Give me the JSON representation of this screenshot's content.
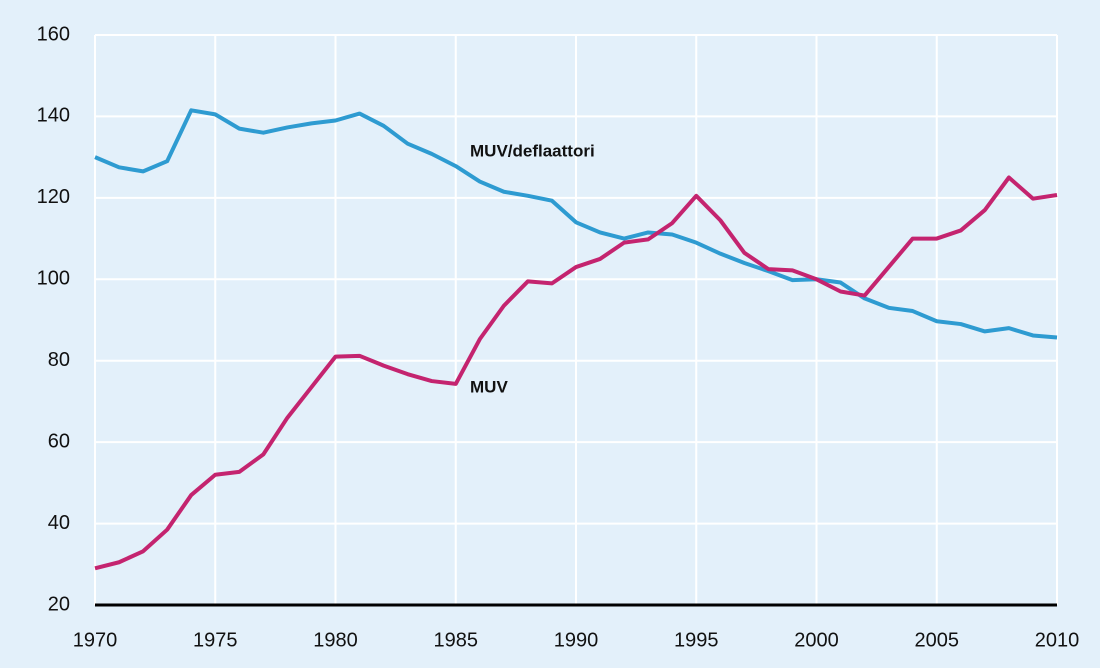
{
  "chart_data": {
    "type": "line",
    "x": [
      1970,
      1971,
      1972,
      1973,
      1974,
      1975,
      1976,
      1977,
      1978,
      1979,
      1980,
      1981,
      1982,
      1983,
      1984,
      1985,
      1986,
      1987,
      1988,
      1989,
      1990,
      1991,
      1992,
      1993,
      1994,
      1995,
      1996,
      1997,
      1998,
      1999,
      2000,
      2001,
      2002,
      2003,
      2004,
      2005,
      2006,
      2007,
      2008,
      2009,
      2010
    ],
    "series": [
      {
        "name": "MUV/deflaattori",
        "color": "#2e9bd1",
        "values": [
          130,
          127.5,
          126.5,
          129,
          141.5,
          140.5,
          137,
          136,
          137.3,
          138.3,
          139,
          140.7,
          137.7,
          133.3,
          130.8,
          127.8,
          124,
          121.5,
          120.5,
          119.3,
          114,
          111.5,
          110,
          111.5,
          111,
          109,
          106.3,
          104,
          102,
          99.8,
          100,
          99.2,
          95.3,
          93,
          92.2,
          89.7,
          89,
          87.2,
          88,
          86.2,
          85.7
        ]
      },
      {
        "name": "MUV",
        "color": "#c4246f",
        "values": [
          29,
          30.5,
          33.2,
          38.5,
          47,
          52,
          52.7,
          57,
          66,
          73.5,
          81,
          81.2,
          78.8,
          76.7,
          75,
          74.3,
          85.3,
          93.5,
          99.5,
          99,
          103,
          105,
          109,
          109.8,
          113.8,
          120.5,
          114.5,
          106.5,
          102.5,
          102.2,
          100,
          97,
          96,
          103,
          110,
          110,
          112,
          117,
          125,
          119.8,
          120.7
        ]
      }
    ],
    "xlim": [
      1970,
      2010
    ],
    "xticks": [
      1970,
      1975,
      1980,
      1985,
      1990,
      1995,
      2000,
      2005,
      2010
    ],
    "ylim": [
      20,
      160
    ],
    "yticks": [
      20,
      40,
      60,
      80,
      100,
      120,
      140,
      160
    ],
    "grid": true
  }
}
